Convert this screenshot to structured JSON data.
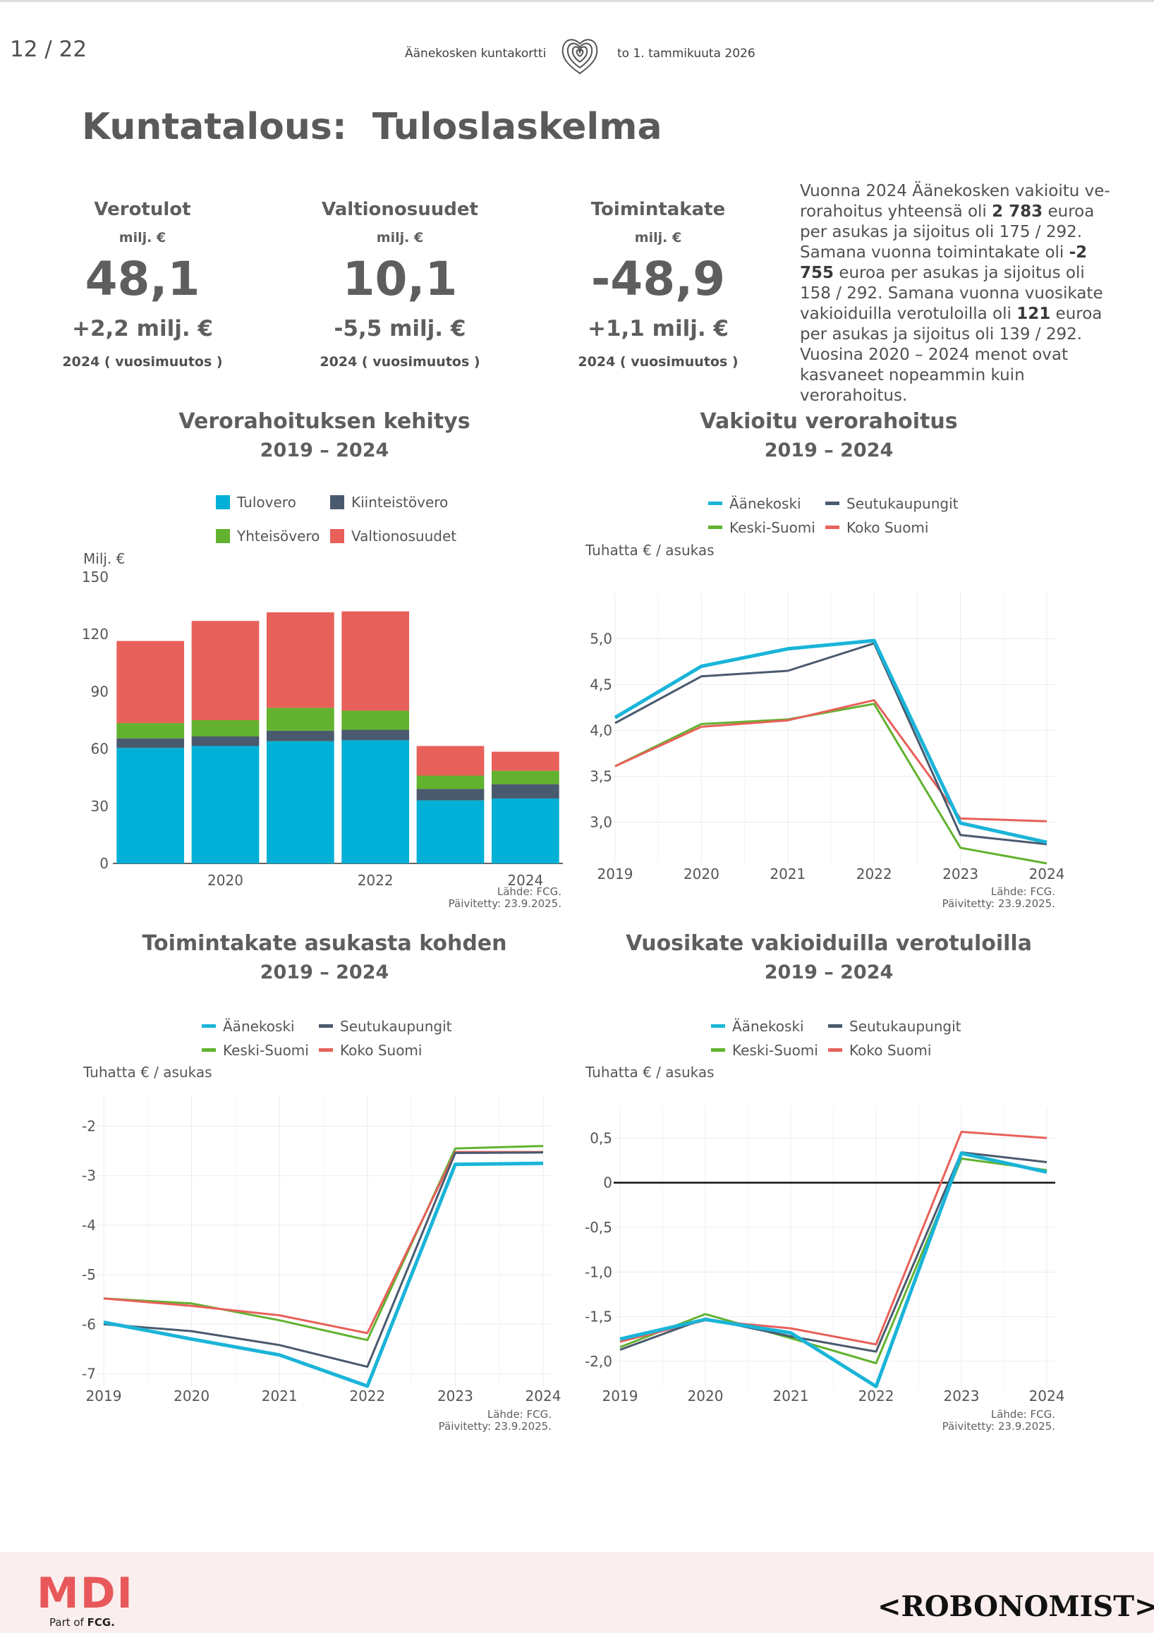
{
  "header": {
    "page": "12 / 22",
    "left": "Äänekosken kuntakortti",
    "right": "to 1. tammikuuta 2026",
    "logo_icon": "fingerprint-heart-icon"
  },
  "title": "Kuntatalous:  Tuloslaskelma",
  "kpis": [
    {
      "name": "Verotulot",
      "unit": "milj. €",
      "value": "48,1",
      "change": "+2,2 milj. €",
      "note": "2024 ( vuosimuutos )"
    },
    {
      "name": "Valtionosuudet",
      "unit": "milj. €",
      "value": "10,1",
      "change": "-5,5 milj. €",
      "note": "2024 ( vuosimuutos )"
    },
    {
      "name": "Toimintakate",
      "unit": "milj. €",
      "value": "-48,9",
      "change": "+1,1 milj. €",
      "note": "2024 ( vuosimuutos )"
    }
  ],
  "description": {
    "p1": "Vuonna 2024 Äänekosken vakioitu ve­rorahoitus yhteensä oli ",
    "b1": "2 783",
    "p2": " euroa per asukas ja sijoitus oli 175 / 292. Sa­mana vuonna toimintakate oli ",
    "b2": "-2 755",
    "p3": " euroa per asukas ja sijoitus oli 158 / 292. Samana vuonna vuosikate vakioi­duilla verotuloilla oli ",
    "b3": "121",
    "p4": " euroa per asukas ja sijoitus oli 139 / 292. Vuosina 2020 – 2024 menot ovat kasvaneet no­peammin kuin verorahoitus."
  },
  "colors": {
    "tulovero": "#00b0d6",
    "kiinteistovero": "#4a5a6e",
    "yhteisovero": "#62b22f",
    "valtionosuudet": "#e8605a",
    "aanekoski": "#1ab4d8",
    "seutukaupungit": "#4a5a6e",
    "keski_suomi": "#62b22f",
    "koko_suomi": "#e8605a"
  },
  "source": {
    "line1": "Lähde: FCG.",
    "line2": "Päivitetty: 23.9.2025."
  },
  "chart_data": [
    {
      "type": "bar",
      "stacked": true,
      "title": "Verorahoituksen kehitys",
      "subtitle": "2019 – 2024",
      "ylabel": "Milj. €",
      "ylim": [
        0,
        150
      ],
      "yticks": [
        "0",
        "30",
        "60",
        "90",
        "120",
        "150"
      ],
      "xticks": [
        "2020",
        "2022",
        "2024"
      ],
      "categories": [
        "2019",
        "2020",
        "2021",
        "2022",
        "2023",
        "2024"
      ],
      "series": [
        {
          "name": "Tulovero",
          "values": [
            60.5,
            61.5,
            64,
            64.5,
            33,
            34
          ]
        },
        {
          "name": "Kiinteistövero",
          "values": [
            5,
            5,
            5.5,
            5.5,
            6,
            7.5
          ]
        },
        {
          "name": "Yhteisövero",
          "values": [
            8,
            8.5,
            12,
            10,
            7,
            7
          ]
        },
        {
          "name": "Valtionosuudet",
          "values": [
            43,
            52,
            50,
            52,
            15.5,
            10
          ]
        }
      ],
      "legend": [
        "Tulovero",
        "Kiinteistövero",
        "Yhteisövero",
        "Valtionosuudet"
      ],
      "legend_position": "top"
    },
    {
      "type": "line",
      "title": "Vakioitu verorahoitus",
      "subtitle": "2019 – 2024",
      "ylabel": "Tuhatta € / asukas",
      "ylim": [
        2.55,
        5.35
      ],
      "yticks": [
        "3,0",
        "3,5",
        "4,0",
        "4,5",
        "5,0"
      ],
      "x": [
        "2019",
        "2020",
        "2021",
        "2022",
        "2023",
        "2024"
      ],
      "series": [
        {
          "name": "Äänekoski",
          "values": [
            4.14,
            4.7,
            4.89,
            4.98,
            2.99,
            2.78
          ]
        },
        {
          "name": "Seutukaupungit",
          "values": [
            4.08,
            4.59,
            4.65,
            4.95,
            2.86,
            2.76
          ]
        },
        {
          "name": "Keski-Suomi",
          "values": [
            3.61,
            4.07,
            4.12,
            4.29,
            2.72,
            2.55
          ]
        },
        {
          "name": "Koko Suomi",
          "values": [
            3.61,
            4.04,
            4.11,
            4.33,
            3.04,
            3.01
          ]
        }
      ],
      "legend_position": "top"
    },
    {
      "type": "line",
      "title": "Toimintakate asukasta kohden",
      "subtitle": "2019 – 2024",
      "ylabel": "Tuhatta € / asukas",
      "ylim": [
        -7.25,
        -1.65
      ],
      "yticks": [
        "-7",
        "-6",
        "-5",
        "-4",
        "-3",
        "-2"
      ],
      "x": [
        "2019",
        "2020",
        "2021",
        "2022",
        "2023",
        "2024"
      ],
      "series": [
        {
          "name": "Äänekoski",
          "values": [
            -5.96,
            -6.3,
            -6.62,
            -7.25,
            -2.77,
            -2.75
          ]
        },
        {
          "name": "Seutukaupungit",
          "values": [
            -6.0,
            -6.14,
            -6.42,
            -6.86,
            -2.54,
            -2.53
          ]
        },
        {
          "name": "Keski-Suomi",
          "values": [
            -5.48,
            -5.58,
            -5.92,
            -6.32,
            -2.45,
            -2.4
          ]
        },
        {
          "name": "Koko Suomi",
          "values": [
            -5.48,
            -5.63,
            -5.82,
            -6.18,
            -2.52,
            -2.52
          ]
        }
      ],
      "legend_position": "top"
    },
    {
      "type": "line",
      "title": "Vuosikate vakioiduilla verotuloilla",
      "subtitle": "2019 – 2024",
      "ylabel": "Tuhatta € / asukas",
      "ylim": [
        -2.3,
        0.7
      ],
      "yticks": [
        "-2,0",
        "-1,5",
        "-1,0",
        "-0,5",
        "0",
        "0,5"
      ],
      "zero_line": true,
      "x": [
        "2019",
        "2020",
        "2021",
        "2022",
        "2023",
        "2024"
      ],
      "series": [
        {
          "name": "Äänekoski",
          "values": [
            -1.75,
            -1.53,
            -1.68,
            -2.28,
            0.33,
            0.12
          ]
        },
        {
          "name": "Seutukaupungit",
          "values": [
            -1.87,
            -1.52,
            -1.72,
            -1.89,
            0.34,
            0.23
          ]
        },
        {
          "name": "Keski-Suomi",
          "values": [
            -1.84,
            -1.47,
            -1.74,
            -2.02,
            0.27,
            0.14
          ]
        },
        {
          "name": "Koko Suomi",
          "values": [
            -1.78,
            -1.54,
            -1.63,
            -1.81,
            0.57,
            0.5
          ]
        }
      ],
      "legend_position": "top"
    }
  ],
  "footer": {
    "mdi": "MDI",
    "partof_prefix": "Part of ",
    "partof_brand": "FCG.",
    "robonomist": "<ROBONOMIST>"
  }
}
